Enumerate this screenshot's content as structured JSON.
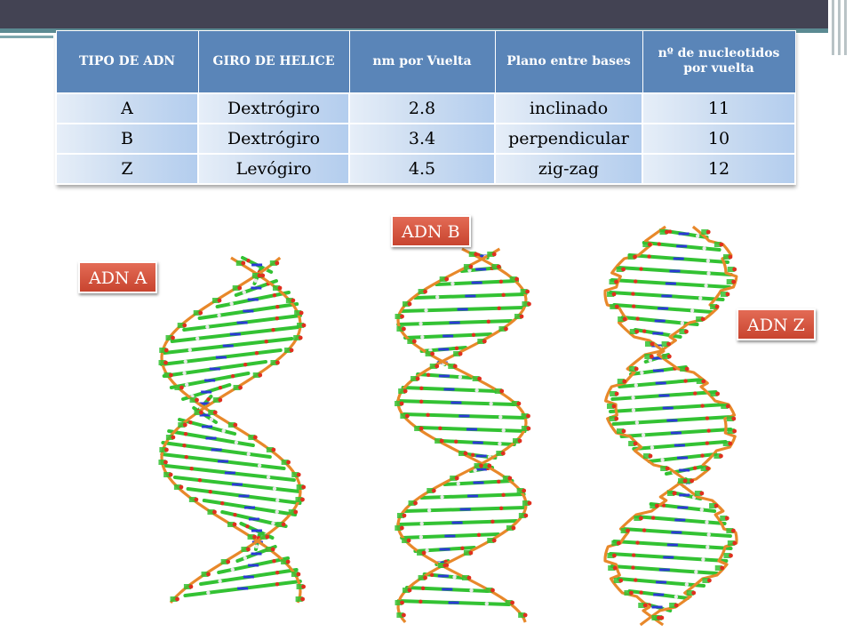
{
  "table": {
    "headers": [
      "TIPO DE ADN",
      "GIRO DE HELICE",
      "nm por Vuelta",
      "Plano entre bases",
      "nº de nucleotidos por vuelta"
    ],
    "rows": [
      [
        "A",
        "Dextrógiro",
        "2.8",
        "inclinado",
        "11"
      ],
      [
        "B",
        "Dextrógiro",
        "3.4",
        "perpendicular",
        "10"
      ],
      [
        "Z",
        "Levógiro",
        "4.5",
        "zig-zag",
        "12"
      ]
    ]
  },
  "labels": {
    "dna_a": "ADN A",
    "dna_b": "ADN B",
    "dna_z": "ADN Z"
  },
  "colors": {
    "header_blue": "#5a85b8",
    "label_red": "#d0503a",
    "backbone_orange": "#e8882a",
    "base_green": "#33c233",
    "base_blue": "#2a3ad6",
    "atom_red": "#e0301e",
    "top_bar": "#434353"
  }
}
